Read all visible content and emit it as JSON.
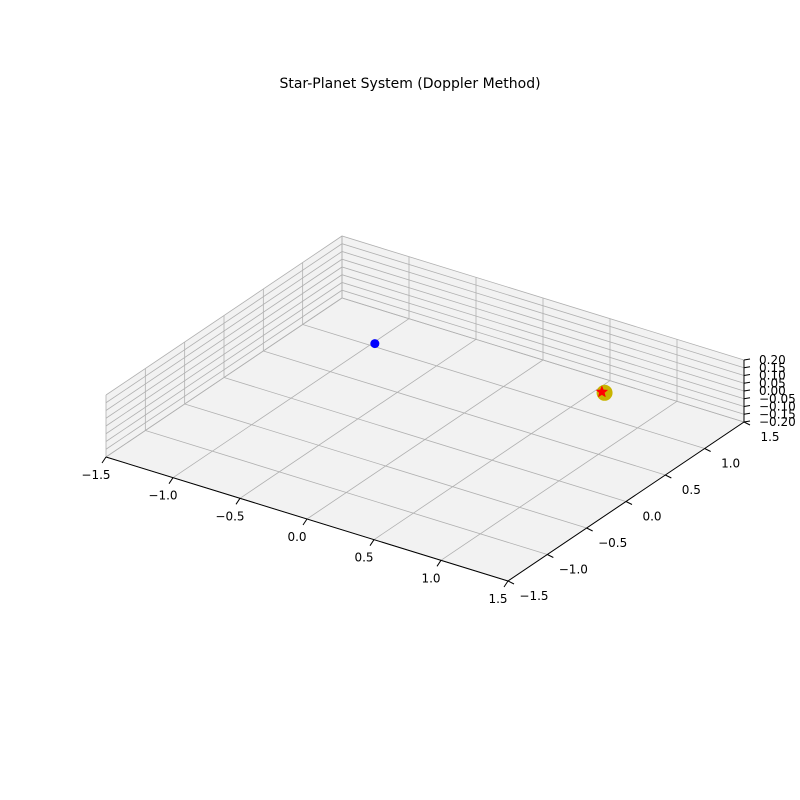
{
  "chart_data": {
    "type": "scatter",
    "projection": "3d",
    "title": "Star-Planet System (Doppler Method)",
    "xlim": [
      -1.5,
      1.5
    ],
    "ylim": [
      -1.5,
      1.5
    ],
    "zlim": [
      -0.2,
      0.2
    ],
    "x_ticks": [
      "−1.5",
      "−1.0",
      "−0.5",
      "0.0",
      "0.5",
      "1.0",
      "1.5"
    ],
    "y_ticks": [
      "−1.5",
      "−1.0",
      "−0.5",
      "0.0",
      "0.5",
      "1.0",
      "1.5"
    ],
    "z_ticks": [
      "−0.20",
      "−0.15",
      "−0.10",
      "−0.05",
      "0.00",
      "0.05",
      "0.10",
      "0.15",
      "0.20"
    ],
    "grid": true,
    "pane_color": "#f2f2f2",
    "grid_color": "#b0b0b0",
    "series": [
      {
        "marker": "circle",
        "color": "#c8b400",
        "points": [
          {
            "x": 0.8,
            "y": 0.92,
            "z": 0
          }
        ]
      },
      {
        "marker": "star",
        "color": "#ff0000",
        "points": [
          {
            "x": 0.78,
            "y": 0.92,
            "z": 0
          }
        ]
      },
      {
        "marker": "circle",
        "color": "#0000ff",
        "points": [
          {
            "x": -0.75,
            "y": 0.64,
            "z": 0
          }
        ]
      }
    ]
  }
}
